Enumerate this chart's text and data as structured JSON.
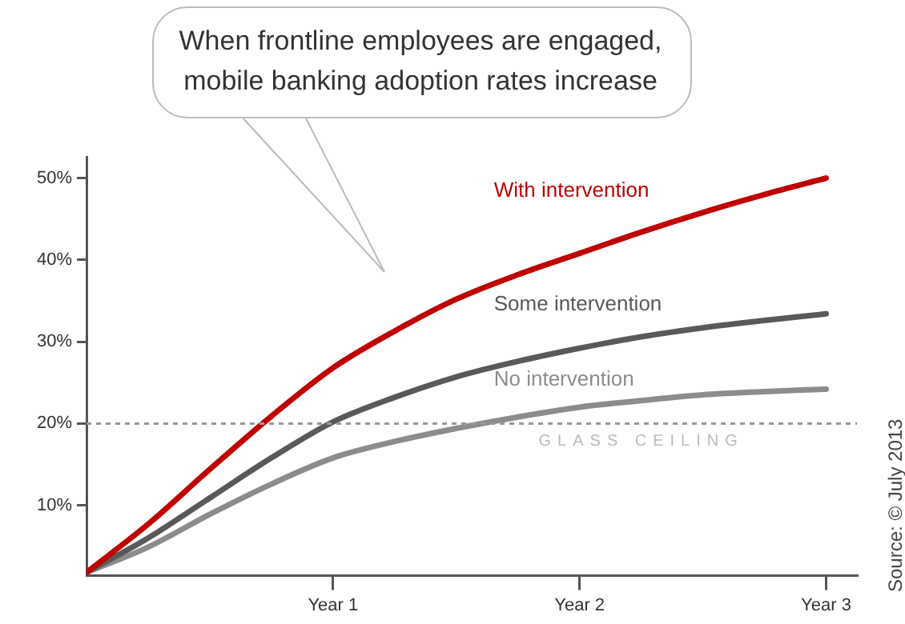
{
  "chart_data": {
    "type": "line",
    "title": "When frontline employees are engaged, mobile banking adoption rates increase",
    "categories": [
      null,
      null,
      null,
      null,
      "Year 1",
      null,
      null,
      null,
      "Year 2",
      null,
      null,
      null,
      "Year 3"
    ],
    "series": [
      {
        "name": "With intervention",
        "color": "#c00000",
        "values": [
          1.8,
          7.7,
          14.4,
          20.9,
          26.8,
          31.3,
          35.2,
          38.2,
          40.8,
          43.4,
          45.8,
          48,
          50
        ]
      },
      {
        "name": "Some intervention",
        "color": "#595959",
        "values": [
          1.8,
          6,
          10.9,
          15.8,
          20.2,
          23.2,
          25.7,
          27.6,
          29.2,
          30.6,
          31.7,
          32.6,
          33.4
        ]
      },
      {
        "name": "No intervention",
        "color": "#8c8c8c",
        "values": [
          1.8,
          4.9,
          8.9,
          12.6,
          15.8,
          17.8,
          19.4,
          20.8,
          22,
          22.8,
          23.5,
          23.9,
          24.2
        ]
      }
    ],
    "ylim": [
      1.4,
      52.6
    ],
    "yticks": [
      {
        "value": 10,
        "label": "10%"
      },
      {
        "value": 20,
        "label": "20%"
      },
      {
        "value": 30,
        "label": "30%"
      },
      {
        "value": 40,
        "label": "40%"
      },
      {
        "value": 50,
        "label": "50%"
      }
    ],
    "ref_lines": [
      {
        "axis": "y",
        "value": 20,
        "label": "GLASS CEILING",
        "color": "#999999",
        "line_style": "dotted"
      }
    ],
    "annotations": [
      "Source: © July 2013"
    ],
    "grid": false,
    "legend": false,
    "marker": "none",
    "line_style": "solid"
  }
}
